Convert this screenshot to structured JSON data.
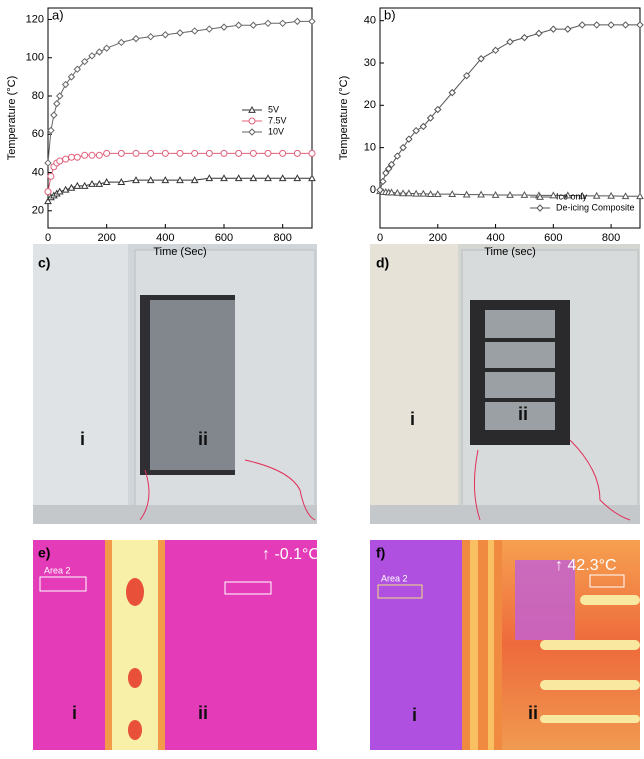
{
  "chart_data": [
    {
      "type": "line",
      "panel": "a)",
      "x_label": "Time (Sec)",
      "y_label": "Temperature (°C)",
      "x": [
        0,
        10,
        20,
        30,
        40,
        60,
        80,
        100,
        125,
        150,
        175,
        200,
        250,
        300,
        350,
        400,
        450,
        500,
        550,
        600,
        650,
        700,
        750,
        800,
        850,
        900
      ],
      "series": [
        {
          "name": "5V",
          "color": "#333333",
          "marker": "triangle",
          "values": [
            25,
            27,
            28,
            29,
            30,
            31,
            32,
            33,
            33,
            34,
            34,
            35,
            35,
            36,
            36,
            36,
            36,
            36,
            37,
            37,
            37,
            37,
            37,
            37,
            37,
            37
          ]
        },
        {
          "name": "7.5V",
          "color": "#e0607a",
          "marker": "circle",
          "values": [
            30,
            38,
            43,
            45,
            46,
            47,
            48,
            48,
            49,
            49,
            49,
            50,
            50,
            50,
            50,
            50,
            50,
            50,
            50,
            50,
            50,
            50,
            50,
            50,
            50,
            50
          ]
        },
        {
          "name": "10V",
          "color": "#666666",
          "marker": "diamond",
          "values": [
            45,
            62,
            70,
            76,
            80,
            86,
            90,
            94,
            98,
            101,
            103,
            105,
            108,
            110,
            111,
            112,
            113,
            114,
            115,
            116,
            117,
            117,
            118,
            118,
            119,
            119
          ]
        }
      ],
      "xlim": [
        0,
        900
      ],
      "ylim": [
        11,
        126
      ],
      "xticks": [
        0,
        200,
        400,
        600,
        800
      ],
      "yticks": [
        20,
        40,
        60,
        80,
        100,
        120
      ],
      "legend": "right"
    },
    {
      "type": "line",
      "panel": "b)",
      "x_label": "Time (sec)",
      "y_label": "Temperature (°C)",
      "x": [
        0,
        10,
        20,
        30,
        40,
        60,
        80,
        100,
        125,
        150,
        175,
        200,
        250,
        300,
        350,
        400,
        450,
        500,
        550,
        600,
        650,
        700,
        750,
        800,
        850,
        900
      ],
      "series": [
        {
          "name": "Ice only",
          "color": "#555555",
          "marker": "triangle",
          "values": [
            -0.3,
            -0.5,
            -0.5,
            -0.6,
            -0.6,
            -0.7,
            -0.8,
            -0.8,
            -0.9,
            -0.9,
            -1,
            -1,
            -1,
            -1.1,
            -1.1,
            -1.2,
            -1.2,
            -1.2,
            -1.3,
            -1.3,
            -1.3,
            -1.4,
            -1.4,
            -1.4,
            -1.5,
            -1.5
          ]
        },
        {
          "name": "De-icing Composite",
          "color": "#555555",
          "marker": "diamond",
          "values": [
            0,
            2,
            4,
            5,
            6,
            8,
            10,
            12,
            14,
            15,
            17,
            19,
            23,
            27,
            31,
            33,
            35,
            36,
            37,
            38,
            38,
            39,
            39,
            39,
            39,
            39
          ]
        }
      ],
      "xlim": [
        0,
        900
      ],
      "ylim": [
        -9,
        43
      ],
      "xticks": [
        0,
        200,
        400,
        600,
        800
      ],
      "yticks": [
        0,
        10,
        20,
        30,
        40
      ],
      "legend": "lower right"
    }
  ],
  "panels": [
    {
      "label": "c)",
      "regions": [
        "i",
        "ii"
      ]
    },
    {
      "label": "d)",
      "regions": [
        "i",
        "ii"
      ]
    },
    {
      "label": "e)",
      "regions": [
        "i",
        "ii"
      ],
      "area": "Area 2",
      "reading": "↑ -0.1°C"
    },
    {
      "label": "f)",
      "regions": [
        "i",
        "ii"
      ],
      "area": "Area 2",
      "reading": "↑ 42.3°C"
    }
  ]
}
